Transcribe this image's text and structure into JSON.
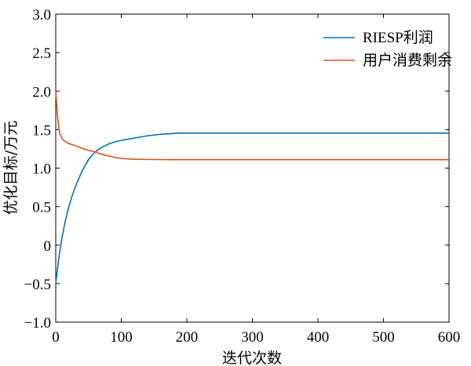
{
  "chart_data": {
    "type": "line",
    "xlabel": "迭代次数",
    "ylabel": "优化目标/万元",
    "xlim": [
      0,
      600
    ],
    "ylim": [
      -1.0,
      3.0
    ],
    "x_ticks": [
      0,
      100,
      200,
      300,
      400,
      500,
      600
    ],
    "x_tick_labels": [
      "0",
      "100",
      "200",
      "300",
      "400",
      "500",
      "600"
    ],
    "y_ticks": [
      -1.0,
      -0.5,
      0,
      0.5,
      1.0,
      1.5,
      2.0,
      2.5,
      3.0
    ],
    "y_tick_labels": [
      "−1.0",
      "−0.5",
      "0",
      "0.5",
      "1.0",
      "1.5",
      "2.0",
      "2.5",
      "3.0"
    ],
    "grid": false,
    "legend_position": "top-right",
    "series": [
      {
        "name": "RIESP利润",
        "color": "#0072BD",
        "x": [
          0,
          5,
          10,
          15,
          20,
          25,
          30,
          40,
          50,
          60,
          70,
          80,
          90,
          100,
          120,
          140,
          160,
          180,
          185,
          200,
          300,
          400,
          500,
          600
        ],
        "y": [
          -0.5,
          -0.15,
          0.12,
          0.33,
          0.5,
          0.64,
          0.76,
          0.96,
          1.11,
          1.21,
          1.27,
          1.31,
          1.34,
          1.36,
          1.39,
          1.42,
          1.44,
          1.45,
          1.455,
          1.455,
          1.455,
          1.455,
          1.455,
          1.455
        ]
      },
      {
        "name": "用户消费剩余",
        "color": "#D95319",
        "x": [
          0,
          3,
          6,
          10,
          15,
          20,
          30,
          40,
          50,
          60,
          70,
          80,
          90,
          100,
          110,
          120,
          150,
          180,
          200,
          300,
          400,
          500,
          600
        ],
        "y": [
          2.0,
          1.65,
          1.45,
          1.38,
          1.34,
          1.32,
          1.29,
          1.26,
          1.23,
          1.21,
          1.18,
          1.16,
          1.14,
          1.125,
          1.12,
          1.115,
          1.112,
          1.11,
          1.11,
          1.11,
          1.11,
          1.11,
          1.11
        ]
      }
    ]
  }
}
